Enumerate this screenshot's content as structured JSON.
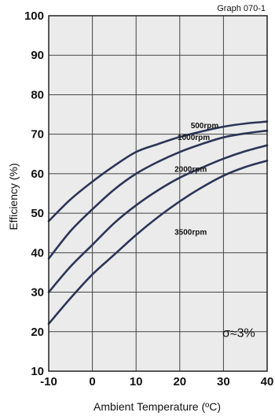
{
  "chart_data": {
    "type": "line",
    "title": "Graph 070-1",
    "xlabel": "Ambient Temperature (ºC)",
    "ylabel": "Efficiency (%)",
    "xlim": [
      -10,
      40
    ],
    "ylim": [
      10,
      100
    ],
    "xticks": [
      -10,
      0,
      10,
      20,
      30,
      40
    ],
    "yticks": [
      10,
      20,
      30,
      40,
      50,
      60,
      70,
      80,
      90,
      100
    ],
    "grid": true,
    "annotation": "σ≈3%",
    "series": [
      {
        "name": "500rpm",
        "x": [
          -10,
          -5,
          0,
          5,
          10,
          15,
          20,
          25,
          30,
          35,
          40
        ],
        "y": [
          48,
          53.5,
          58,
          62,
          65.5,
          67.5,
          69.3,
          70.7,
          71.9,
          72.7,
          73.2
        ]
      },
      {
        "name": "1000rpm",
        "x": [
          -10,
          -5,
          0,
          5,
          10,
          15,
          20,
          25,
          30,
          35,
          40
        ],
        "y": [
          38.5,
          45.5,
          51,
          56,
          60,
          63,
          65.5,
          67.5,
          69.2,
          70.2,
          70.9
        ]
      },
      {
        "name": "2000rpm",
        "x": [
          -10,
          -5,
          0,
          5,
          10,
          15,
          20,
          25,
          30,
          35,
          40
        ],
        "y": [
          30,
          36.5,
          42,
          47.5,
          52,
          55.8,
          59,
          61.5,
          63.8,
          65.7,
          67.2
        ]
      },
      {
        "name": "3500rpm",
        "x": [
          -10,
          -5,
          0,
          5,
          10,
          15,
          20,
          25,
          30,
          35,
          40
        ],
        "y": [
          22,
          28.5,
          34.5,
          39.5,
          44.5,
          49,
          53,
          56.5,
          59.5,
          61.7,
          63.3
        ]
      }
    ],
    "series_label_at": [
      {
        "x": 22.5,
        "y": 71.5
      },
      {
        "x": 19.5,
        "y": 68.5
      },
      {
        "x": 18.8,
        "y": 60.5
      },
      {
        "x": 18.8,
        "y": 44.5
      }
    ]
  }
}
